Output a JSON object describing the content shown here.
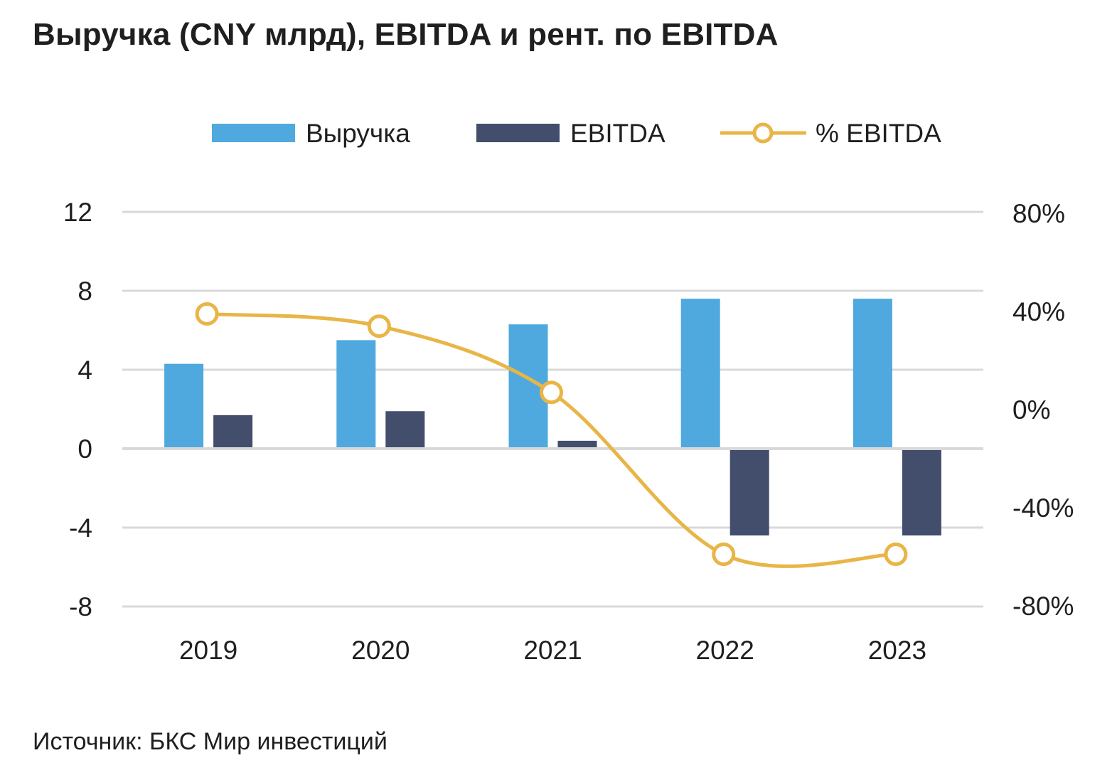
{
  "title": "Выручка (CNY млрд), EBITDA и рент. по EBITDA",
  "source": "Источник: БКС Мир инвестиций",
  "chart_data": {
    "type": "bar",
    "categories": [
      "2019",
      "2020",
      "2021",
      "2022",
      "2023"
    ],
    "series": [
      {
        "name": "Выручка",
        "kind": "bar",
        "axis": "left",
        "color": "#4FA9DE",
        "values": [
          4.3,
          5.5,
          6.3,
          7.6,
          7.6
        ]
      },
      {
        "name": "EBITDA",
        "kind": "bar",
        "axis": "left",
        "color": "#434E6C",
        "values": [
          1.7,
          1.9,
          0.4,
          -4.4,
          -4.4
        ]
      },
      {
        "name": "% EBITDA",
        "kind": "line",
        "axis": "right",
        "color": "#E8B547",
        "values": [
          0.39,
          0.34,
          0.07,
          -0.59,
          -0.59
        ]
      }
    ],
    "left_axis": {
      "ylim": [
        -8,
        12
      ],
      "ticks": [
        "12",
        "8",
        "4",
        "0",
        "-4",
        "-8"
      ],
      "tick_values": [
        12,
        8,
        4,
        0,
        -4,
        -8
      ]
    },
    "right_axis": {
      "ylim": [
        -0.8,
        0.8
      ],
      "ticks": [
        "80%",
        "40%",
        "0%",
        "-40%",
        "-80%"
      ],
      "tick_values": [
        0.8,
        0.4,
        0,
        -0.4,
        -0.8
      ]
    },
    "grid": true,
    "legend_position": "top-center"
  }
}
